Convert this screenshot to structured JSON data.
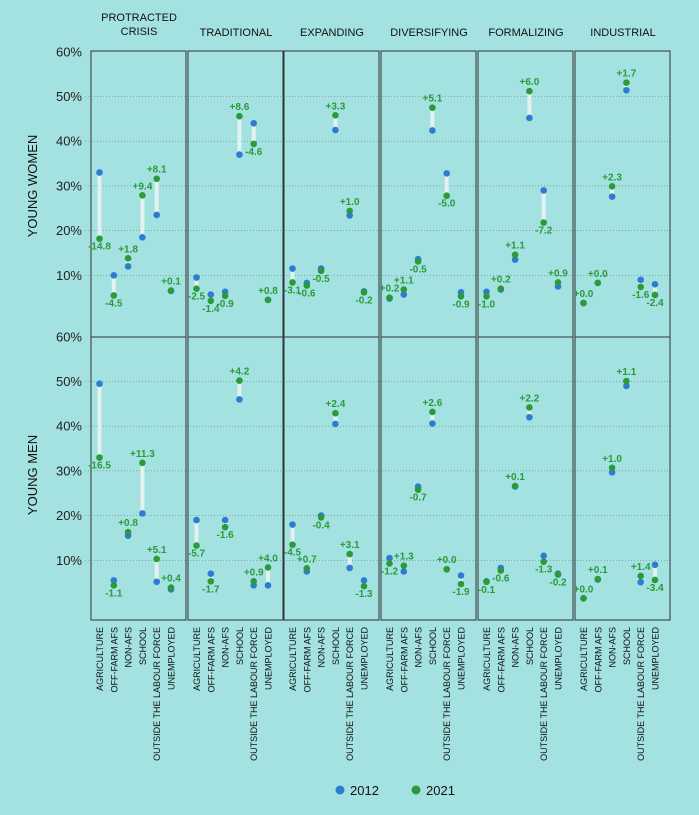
{
  "chart_data": {
    "type": "dot-change",
    "columns": [
      "PROTRACTED CRISIS",
      "TRADITIONAL",
      "EXPANDING",
      "DIVERSIFYING",
      "FORMALIZING",
      "INDUSTRIAL"
    ],
    "rows": [
      "YOUNG WOMEN",
      "YOUNG MEN"
    ],
    "categories": [
      "AGRICULTURE",
      "OFF-FARM AFS",
      "NON-AFS",
      "SCHOOL",
      "OUTSIDE THE LABOUR FORCE",
      "UNEMPLOYED"
    ],
    "y_ticks": [
      "60%",
      "50%",
      "40%",
      "30%",
      "20%",
      "10%"
    ],
    "ylim": [
      0,
      60
    ],
    "legend": [
      {
        "label": "2012",
        "color": "#2f7bd1"
      },
      {
        "label": "2021",
        "color": "#2a9a3a"
      }
    ],
    "panels": [
      [
        {
          "v2012": [
            33,
            10,
            12,
            18.5,
            23.5,
            6.5
          ],
          "v2021": [
            18.2,
            5.5,
            13.8,
            27.9,
            31.6,
            6.6
          ],
          "labels": [
            "-14.8",
            "-4.5",
            "+1.8",
            "+9.4",
            "+8.1",
            "+0.1"
          ]
        },
        {
          "v2012": [
            9.5,
            5.7,
            6.3,
            37,
            44,
            4.5
          ],
          "v2021": [
            7,
            4.3,
            5.4,
            45.6,
            39.4,
            4.5
          ],
          "labels": [
            "-2.5",
            "-1.4",
            "-0.9",
            "+8.6",
            "-4.6",
            "+0.8"
          ]
        },
        {
          "v2012": [
            11.5,
            8.3,
            11.5,
            42.5,
            23.4,
            6.4
          ],
          "v2021": [
            8.4,
            7.7,
            11,
            45.8,
            24.4,
            6.2
          ],
          "labels": [
            "-3.1",
            "-0.6",
            "-0.5",
            "+3.3",
            "+1.0",
            "-0.2"
          ]
        },
        {
          "v2012": [
            4.8,
            5.7,
            13.6,
            42.4,
            32.8,
            6.2
          ],
          "v2021": [
            5,
            6.8,
            13.1,
            47.5,
            27.8,
            5.3
          ],
          "labels": [
            "+0.2",
            "+1.1",
            "-0.5",
            "+5.1",
            "-5.0",
            "-0.9"
          ]
        },
        {
          "v2012": [
            6.3,
            6.8,
            13.5,
            45.2,
            29,
            7.5
          ],
          "v2021": [
            5.3,
            7,
            14.6,
            51.2,
            21.8,
            8.4
          ],
          "labels": [
            "-1.0",
            "+0.2",
            "+1.1",
            "+6.0",
            "-7.2",
            "+0.9"
          ]
        },
        {
          "v2012": [
            3.8,
            8.3,
            27.6,
            51.4,
            9,
            8
          ],
          "v2021": [
            3.8,
            8.3,
            29.9,
            53.1,
            7.4,
            5.6
          ],
          "labels": [
            "+0.0",
            "+0.0",
            "+2.3",
            "+1.7",
            "-1.6",
            "-2.4"
          ]
        }
      ],
      [
        {
          "v2012": [
            49.5,
            5.5,
            15.5,
            20.5,
            5.2,
            3.5
          ],
          "v2021": [
            33,
            4.4,
            16.3,
            31.8,
            10.3,
            3.9
          ],
          "labels": [
            "-16.5",
            "-1.1",
            "+0.8",
            "+11.3",
            "+5.1",
            "+0.4"
          ]
        },
        {
          "v2012": [
            19,
            7,
            19,
            46,
            4.4,
            4.4
          ],
          "v2021": [
            13.3,
            5.3,
            17.4,
            50.2,
            5.3,
            8.4
          ],
          "labels": [
            "-5.7",
            "-1.7",
            "-1.6",
            "+4.2",
            "+0.9",
            "+4.0"
          ]
        },
        {
          "v2012": [
            18,
            7.5,
            20,
            40.5,
            8.3,
            5.5
          ],
          "v2021": [
            13.5,
            8.2,
            19.6,
            42.9,
            11.4,
            4.2
          ],
          "labels": [
            "-4.5",
            "+0.7",
            "-0.4",
            "+2.4",
            "+3.1",
            "-1.3"
          ]
        },
        {
          "v2012": [
            10.5,
            7.5,
            26.5,
            40.6,
            8,
            6.6
          ],
          "v2021": [
            9.3,
            8.8,
            25.8,
            43.2,
            8,
            4.7
          ],
          "labels": [
            "-1.2",
            "+1.3",
            "-0.7",
            "+2.6",
            "+0.0",
            "-1.9"
          ]
        },
        {
          "v2012": [
            5.3,
            8.3,
            26.5,
            42,
            11,
            7
          ],
          "v2021": [
            5.2,
            7.7,
            26.6,
            44.2,
            9.7,
            6.8
          ],
          "labels": [
            "-0.1",
            "-0.6",
            "+0.1",
            "+2.2",
            "-1.3",
            "-0.2"
          ]
        },
        {
          "v2012": [
            1.5,
            5.7,
            29.7,
            49,
            5.1,
            9
          ],
          "v2021": [
            1.5,
            5.8,
            30.7,
            50.1,
            6.5,
            5.6
          ],
          "labels": [
            "+0.0",
            "+0.1",
            "+1.0",
            "+1.1",
            "+1.4",
            "-3.4"
          ]
        }
      ]
    ]
  }
}
